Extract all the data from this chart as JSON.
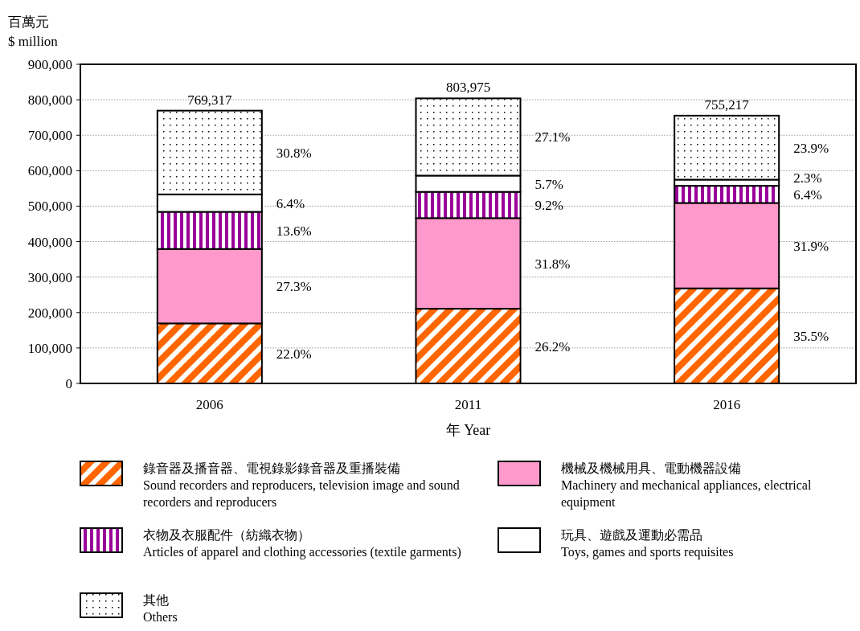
{
  "chart_data": {
    "type": "bar",
    "stacked": true,
    "ylabel": "百萬元\n$ million",
    "xlabel": "年 Year",
    "categories": [
      "2006",
      "2011",
      "2016"
    ],
    "ylim": [
      0,
      900000
    ],
    "yticks": [
      0,
      {
        "value": 100000,
        "label": "100,000"
      },
      {
        "value": 200000,
        "label": "200,000"
      },
      {
        "value": 300000,
        "label": "300,000"
      },
      {
        "value": 400000,
        "label": "400,000"
      },
      {
        "value": 500000,
        "label": "500,000"
      },
      {
        "value": 600000,
        "label": "600,000"
      },
      {
        "value": 700000,
        "label": "700,000"
      },
      {
        "value": 800000,
        "label": "800,000"
      },
      {
        "value": 900000,
        "label": "900,000"
      }
    ],
    "grid": "y",
    "legend": "bottom",
    "totals": [
      "769,317",
      "803,975",
      "755,217"
    ],
    "annotations": [
      "22.0%",
      "27.3%",
      "13.6%",
      "6.4%",
      "30.8%",
      "26.2%",
      "31.8%",
      "9.2%",
      "5.7%",
      "27.1%",
      "35.5%",
      "31.9%",
      "6.4%",
      "2.3%",
      "23.9%"
    ],
    "series": [
      {
        "name": "錄音器及播音器、電視錄影錄音器及重播裝備\nSound recorders and reproducers, television image and sound recorders and reproducers",
        "color": "#ff6600",
        "values": [
          169250,
          210641,
          268102
        ]
      },
      {
        "name": "機械及機械用具、電動機器設備\nMachinery and mechanical appliances, electrical equipment",
        "color": "#ff99cc",
        "values": [
          210024,
          255664,
          240914
        ]
      },
      {
        "name": "衣物及衣服配件（紡織衣物）\nArticles of apparel and clothing accessories (textile garments)",
        "color": "#990099",
        "values": [
          104627,
          73966,
          48334
        ]
      },
      {
        "name": "玩具、遊戲及運動必需品\nToys, games and sports requisites",
        "color": "#ffffff",
        "values": [
          49236,
          45827,
          17370
        ]
      },
      {
        "name": "其他\nOthers",
        "color": "#000000",
        "values": [
          236180,
          217877,
          180497
        ]
      }
    ]
  }
}
